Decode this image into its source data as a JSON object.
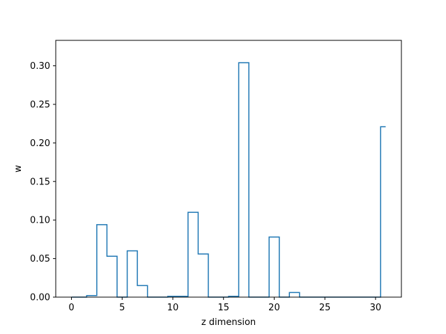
{
  "chart_data": {
    "type": "step",
    "title": "",
    "xlabel": "z dimension",
    "ylabel": "w",
    "xlim": [
      -1.55,
      32.55
    ],
    "ylim": [
      0,
      0.333
    ],
    "xticks": [
      0,
      5,
      10,
      15,
      20,
      25,
      30
    ],
    "yticks": [
      0.0,
      0.05,
      0.1,
      0.15,
      0.2,
      0.25,
      0.3
    ],
    "xtick_labels": [
      "0",
      "5",
      "10",
      "15",
      "20",
      "25",
      "30"
    ],
    "ytick_labels": [
      "0.00",
      "0.05",
      "0.10",
      "0.15",
      "0.20",
      "0.25",
      "0.30"
    ],
    "grid": false,
    "series": [
      {
        "color": "#1f77b4",
        "x": [
          0,
          1,
          2,
          3,
          4,
          5,
          6,
          7,
          8,
          9,
          10,
          11,
          12,
          13,
          14,
          15,
          16,
          17,
          18,
          19,
          20,
          21,
          22,
          23,
          24,
          25,
          26,
          27,
          28,
          29,
          30,
          31
        ],
        "values": [
          0.0,
          0.0,
          0.002,
          0.094,
          0.053,
          0.0,
          0.06,
          0.015,
          0.0,
          0.0,
          0.001,
          0.001,
          0.11,
          0.056,
          0.0,
          0.0,
          0.001,
          0.304,
          0.0,
          0.0,
          0.078,
          0.0,
          0.006,
          0.0,
          0.0,
          0.0,
          0.0,
          0.0,
          0.0,
          0.0,
          0.0,
          0.221
        ]
      }
    ]
  }
}
